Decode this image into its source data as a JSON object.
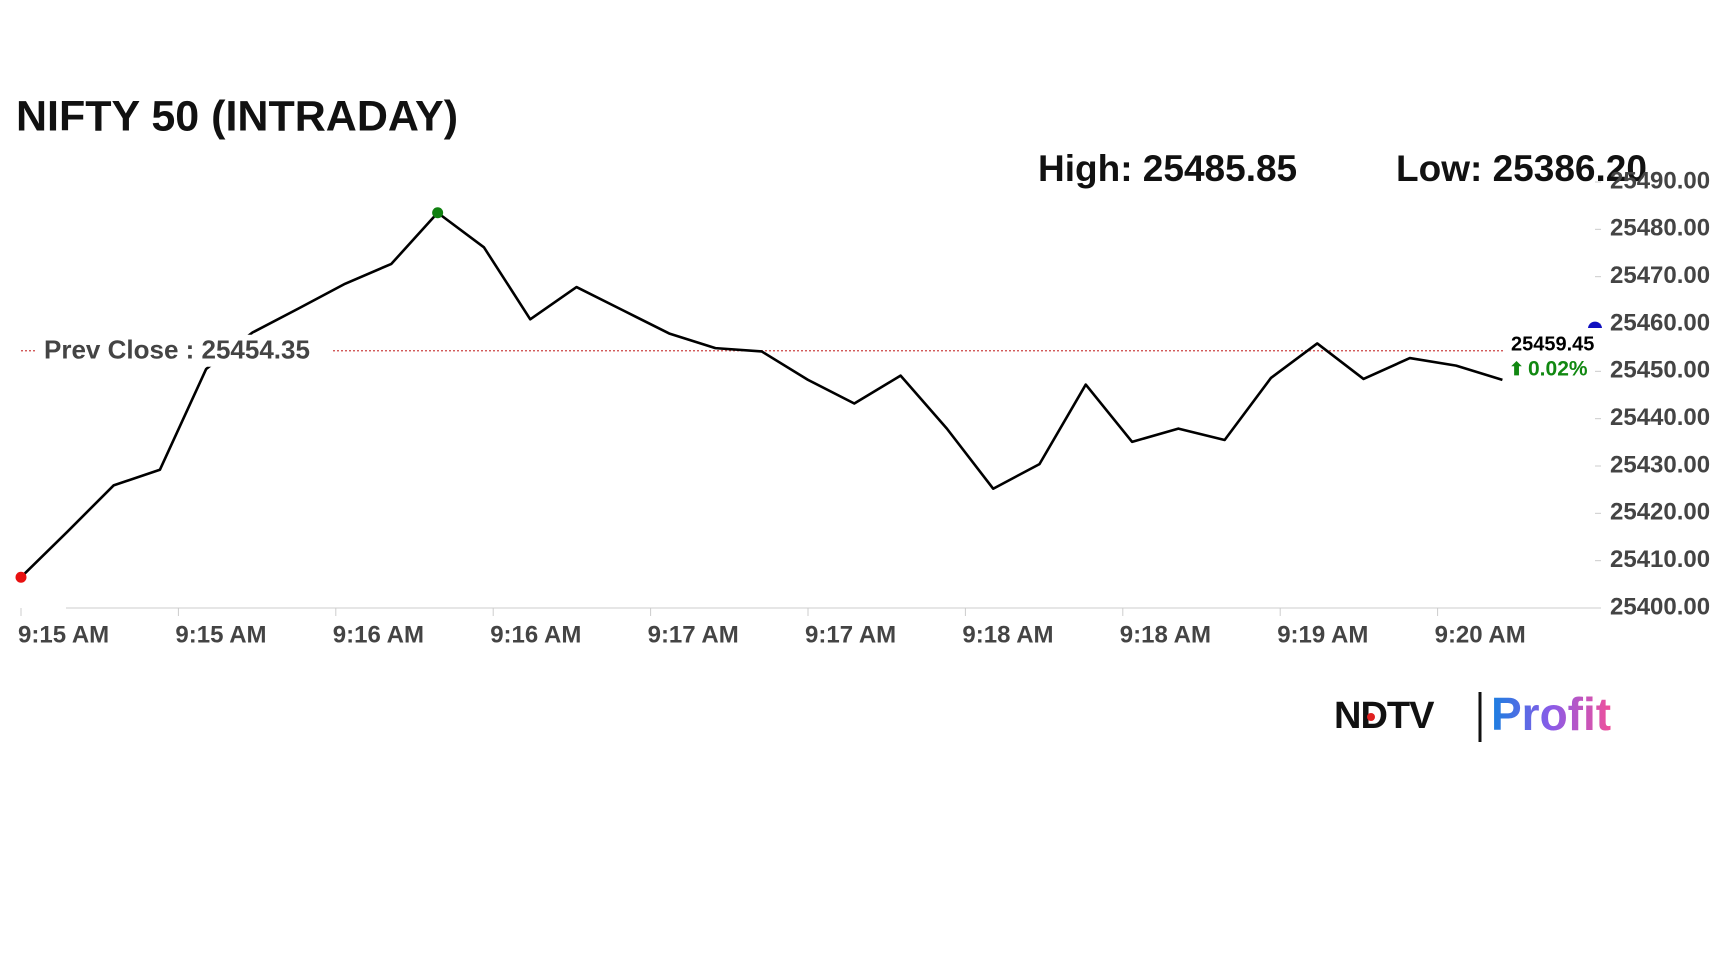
{
  "chart_data": {
    "type": "line",
    "title": "NIFTY 50 (INTRADAY)",
    "high_label": "High: 25485.85",
    "low_label": "Low: 25386.20",
    "values": [
      25406.5,
      25416.1,
      25425.9,
      25429.2,
      25450.5,
      25458.2,
      25463.3,
      25468.5,
      25472.7,
      25483.5,
      25476.2,
      25461.0,
      25467.8,
      25462.9,
      25458.0,
      25454.9,
      25454.2,
      25448.2,
      25443.2,
      25449.1,
      25437.9,
      25425.2,
      25430.4,
      25447.2,
      25435.1,
      25437.9,
      25435.5,
      25448.6,
      25455.9,
      25448.4,
      25452.8,
      25451.2,
      25448.2
    ],
    "color": "#000000",
    "prev_close": 25454.35,
    "prev_close_label": "Prev Close : 25454.35",
    "last_value": 25459.45,
    "last_label": "25459.45",
    "change_arrow": "⬆",
    "change_label": "0.02%",
    "xlim": [
      0,
      34
    ],
    "xticks": [
      {
        "value": 0,
        "label": "9:15 AM"
      },
      {
        "value": 3.4,
        "label": "9:15 AM"
      },
      {
        "value": 6.8,
        "label": "9:16 AM"
      },
      {
        "value": 10.2,
        "label": "9:16 AM"
      },
      {
        "value": 13.6,
        "label": "9:17 AM"
      },
      {
        "value": 17,
        "label": "9:17 AM"
      },
      {
        "value": 20.4,
        "label": "9:18 AM"
      },
      {
        "value": 23.8,
        "label": "9:18 AM"
      },
      {
        "value": 27.2,
        "label": "9:19 AM"
      },
      {
        "value": 30.6,
        "label": "9:20 AM"
      }
    ],
    "ylim": [
      25400,
      25490
    ],
    "yticks": [
      {
        "value": 25400,
        "label": "25400.00"
      },
      {
        "value": 25410,
        "label": "25410.00"
      },
      {
        "value": 25420,
        "label": "25420.00"
      },
      {
        "value": 25430,
        "label": "25430.00"
      },
      {
        "value": 25440,
        "label": "25440.00"
      },
      {
        "value": 25450,
        "label": "25450.00"
      },
      {
        "value": 25460,
        "label": "25460.00"
      },
      {
        "value": 25470,
        "label": "25470.00"
      },
      {
        "value": 25480,
        "label": "25480.00"
      },
      {
        "value": 25490,
        "label": "25490.00"
      }
    ]
  },
  "logo": {
    "left": "NDTV",
    "right": "Profit"
  }
}
